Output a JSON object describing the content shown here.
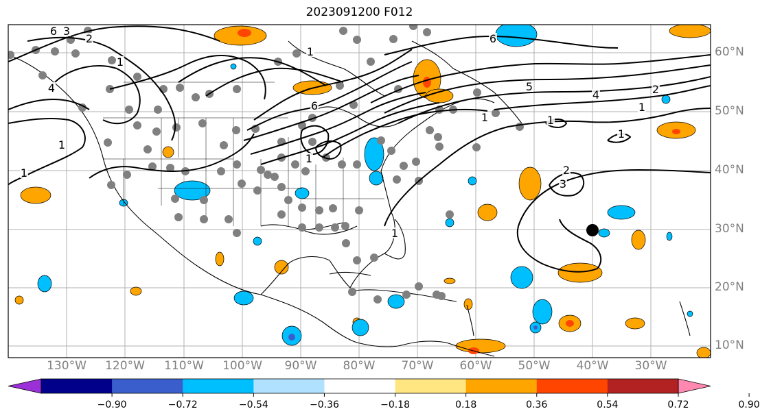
{
  "title": "2023091200 F012",
  "lat_labels": [
    "60°N",
    "50°N",
    "40°N",
    "30°N",
    "20°N",
    "10°N"
  ],
  "lon_labels": [
    "130°W",
    "120°W",
    "110°W",
    "100°W",
    "90°W",
    "80°W",
    "70°W",
    "60°W",
    "50°W",
    "40°W",
    "30°W"
  ],
  "contour_labels": [
    "6",
    "3",
    "2",
    "1",
    "4",
    "6",
    "1",
    "5",
    "4",
    "2",
    "1",
    "1",
    "1",
    "1",
    "2",
    "3",
    "1",
    "1",
    "6",
    "1",
    "1"
  ],
  "colorbar": {
    "ticks": [
      "−0.90",
      "−0.72",
      "−0.54",
      "−0.36",
      "−0.18",
      "0.18",
      "0.36",
      "0.54",
      "0.72",
      "0.90"
    ],
    "colors": [
      "#9b30d9",
      "#00008b",
      "#3a5fcd",
      "#00bfff",
      "#b0e2ff",
      "#ffffff",
      "#ffe680",
      "#ffa500",
      "#ff4500",
      "#b22222",
      "#ff88b0"
    ]
  },
  "colors": {
    "positive": "#ffa500",
    "positive_core": "#ff4500",
    "negative": "#00bfff",
    "negative_core": "#3a5fcd",
    "station": "#808080",
    "marker": "#000000"
  }
}
